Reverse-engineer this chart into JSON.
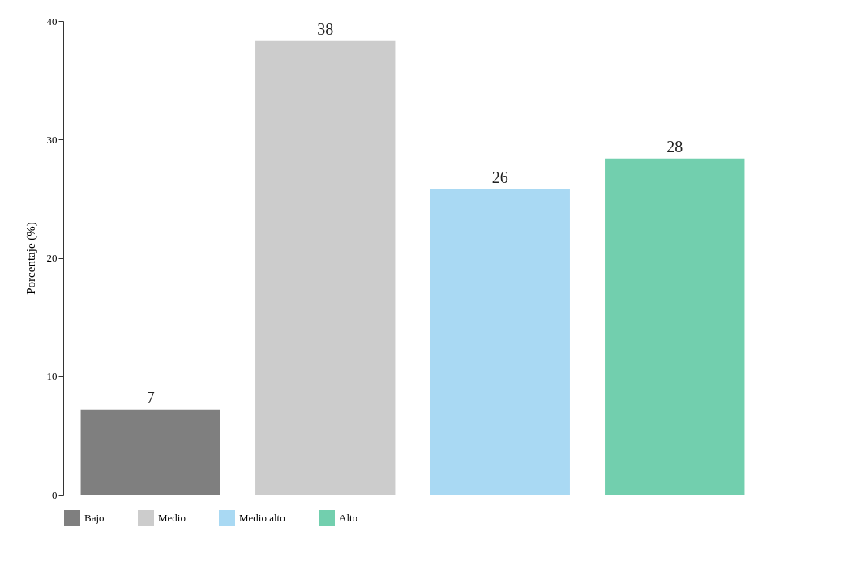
{
  "chart_data": {
    "type": "bar",
    "ylabel": "Porcentaje (%)",
    "stacked": true,
    "categories": [
      null,
      null,
      null,
      null
    ],
    "series": [
      {
        "name": "Bajo",
        "color": "#7f7f7f",
        "values": [
          7.2,
          null,
          null,
          null
        ],
        "value_labels": [
          "7",
          null,
          null,
          null
        ]
      },
      {
        "name": "Medio",
        "color": "#cccccc",
        "values": [
          null,
          38.3,
          null,
          null
        ],
        "value_labels": [
          null,
          "38",
          null,
          null
        ]
      },
      {
        "name": "Medio alto",
        "color": "#a9d9f3",
        "values": [
          null,
          null,
          25.8,
          null
        ],
        "value_labels": [
          null,
          null,
          "26",
          null
        ]
      },
      {
        "name": "Alto",
        "color": "#72cfae",
        "values": [
          null,
          null,
          null,
          28.4
        ],
        "value_labels": [
          null,
          null,
          null,
          "28"
        ]
      }
    ],
    "ylim": [
      0,
      40
    ],
    "yticks": [
      0,
      10,
      20,
      30,
      40
    ],
    "grid": false,
    "legend": "bottom",
    "tick_labels": "y"
  }
}
